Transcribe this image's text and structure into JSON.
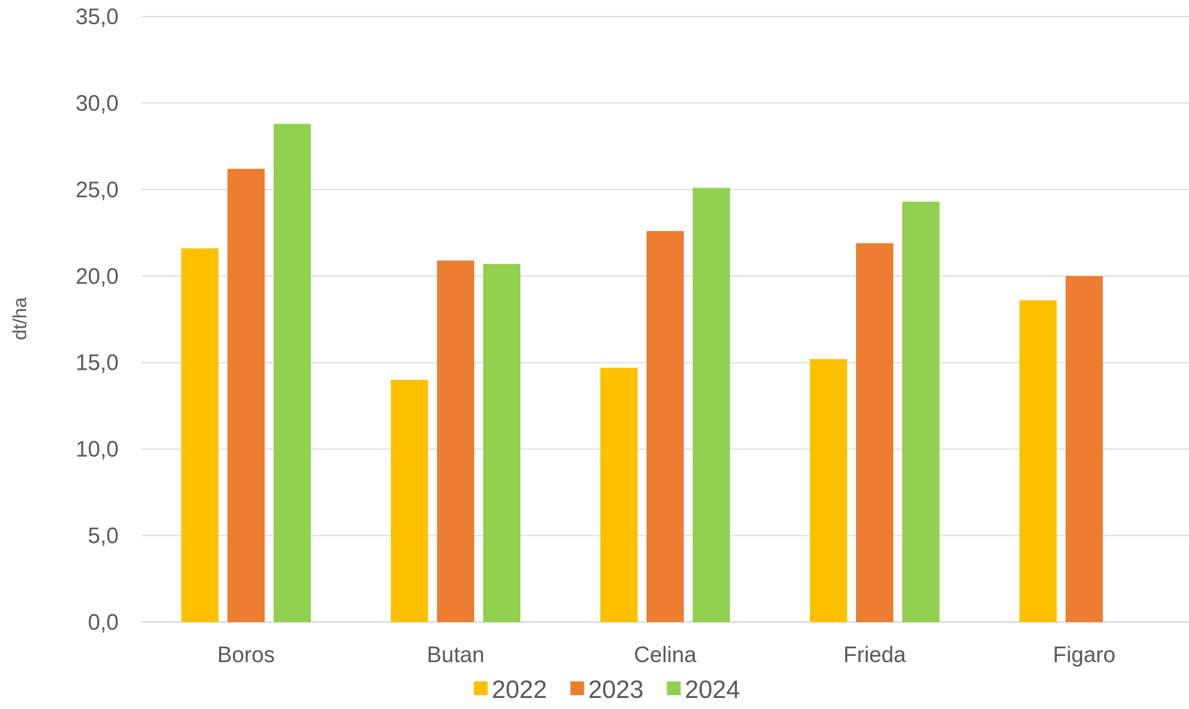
{
  "chart_data": {
    "type": "bar",
    "categories": [
      "Boros",
      "Butan",
      "Celina",
      "Frieda",
      "Figaro"
    ],
    "series": [
      {
        "name": "2022",
        "color": "#FFC000",
        "values": [
          21.6,
          14.0,
          14.7,
          15.2,
          18.6
        ]
      },
      {
        "name": "2023",
        "color": "#ED7D31",
        "values": [
          26.2,
          20.9,
          22.6,
          21.9,
          20.0
        ]
      },
      {
        "name": "2024",
        "color": "#92D050",
        "values": [
          28.8,
          20.7,
          25.1,
          24.3,
          null
        ]
      }
    ],
    "ylabel": "dt/ha",
    "ylim": [
      0,
      35
    ],
    "yticks": [
      "0,0",
      "5,0",
      "10,0",
      "15,0",
      "20,0",
      "25,0",
      "30,0",
      "35,0"
    ],
    "grid": true,
    "legend_position": "bottom"
  }
}
